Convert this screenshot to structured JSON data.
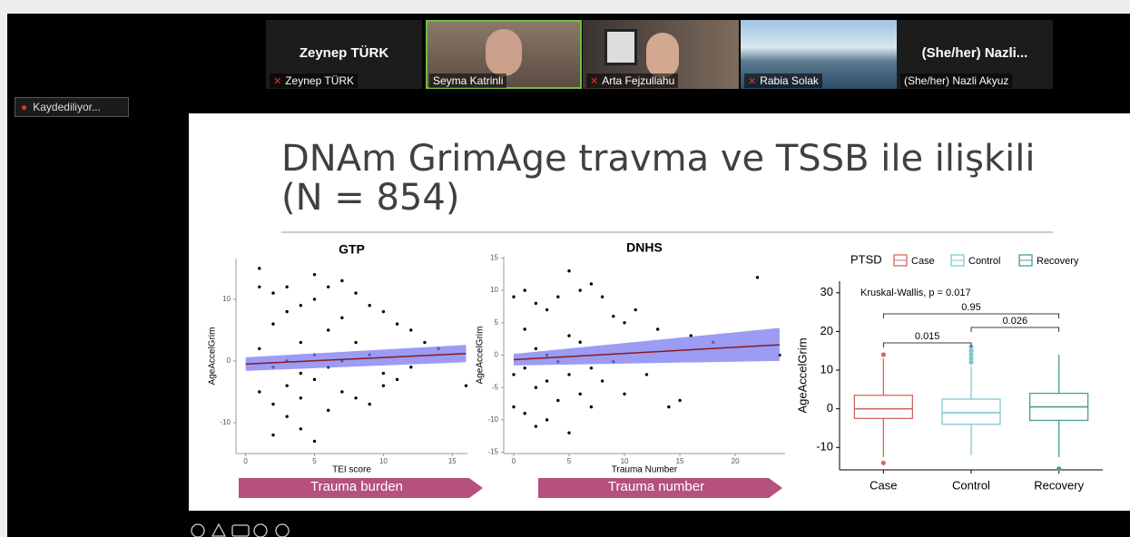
{
  "meeting": {
    "recording_status": "Kaydediliyor...",
    "participants": [
      {
        "tile_name": "Zeynep TÜRK",
        "label": "Zeynep TÜRK"
      },
      {
        "label": "Seyma Katrinli"
      },
      {
        "label": "Arta Fejzullahu"
      },
      {
        "label": "Rabia Solak"
      },
      {
        "tile_name": "(She/her)  Nazli...",
        "label": "(She/her) Nazli Akyuz"
      }
    ]
  },
  "slide": {
    "title_line1": "DNAm GrimAge travma ve TSSB ile ilişkili",
    "title_line2": "(N = 854)",
    "arrows": [
      "Trauma burden",
      "Trauma number"
    ]
  },
  "chart_data": [
    {
      "type": "scatter",
      "title": "GTP",
      "x_label": "TEI score",
      "y_label": "AgeAccelGrim",
      "x": [
        1,
        1,
        1,
        1,
        2,
        2,
        2,
        2,
        2,
        3,
        3,
        3,
        3,
        3,
        4,
        4,
        4,
        4,
        4,
        5,
        5,
        5,
        5,
        5,
        6,
        6,
        6,
        6,
        7,
        7,
        7,
        7,
        8,
        8,
        8,
        9,
        9,
        9,
        10,
        10,
        10,
        11,
        11,
        12,
        12,
        13,
        14,
        16
      ],
      "y": [
        15,
        12,
        2,
        -5,
        11,
        6,
        -1,
        -7,
        -12,
        12,
        8,
        0,
        -4,
        -9,
        9,
        3,
        -2,
        -6,
        -11,
        14,
        10,
        1,
        -3,
        -13,
        12,
        5,
        -1,
        -8,
        13,
        7,
        0,
        -5,
        11,
        3,
        -6,
        9,
        1,
        -7,
        8,
        -2,
        -4,
        6,
        -3,
        5,
        -1,
        3,
        2,
        -4
      ],
      "xlim": [
        -0.7,
        16.1
      ],
      "ylim": [
        -15,
        16.6
      ],
      "xticks": [
        0,
        5,
        10,
        15
      ],
      "yticks": [
        -10,
        0,
        10
      ],
      "fit": {
        "x": [
          0,
          16
        ],
        "y": [
          -0.5,
          1.2
        ],
        "lower": [
          -1.6,
          -0.2
        ],
        "upper": [
          0.6,
          2.6
        ]
      },
      "point_color": "#000000",
      "fit_color": "#8b1a1a",
      "band_color": "#7b7bf0"
    },
    {
      "type": "scatter",
      "title": "DNHS",
      "x_label": "Trauma Number",
      "y_label": "AgeAccelGrim",
      "x": [
        0,
        0,
        0,
        1,
        1,
        1,
        1,
        2,
        2,
        2,
        2,
        3,
        3,
        3,
        3,
        4,
        4,
        4,
        5,
        5,
        5,
        5,
        6,
        6,
        6,
        7,
        7,
        7,
        8,
        8,
        9,
        9,
        10,
        10,
        11,
        12,
        13,
        14,
        15,
        16,
        18,
        22,
        24
      ],
      "y": [
        9,
        -3,
        -8,
        10,
        4,
        -2,
        -9,
        8,
        1,
        -5,
        -11,
        7,
        0,
        -4,
        -10,
        9,
        -1,
        -7,
        13,
        3,
        -3,
        -12,
        10,
        2,
        -6,
        11,
        -2,
        -8,
        9,
        -4,
        6,
        -1,
        5,
        -6,
        7,
        -3,
        4,
        -8,
        -7,
        3,
        2,
        12,
        0
      ],
      "xlim": [
        -0.9,
        24.5
      ],
      "ylim": [
        -15.2,
        15.2
      ],
      "xticks": [
        0,
        5,
        10,
        15,
        20
      ],
      "yticks": [
        -15,
        -10,
        -5,
        0,
        5,
        10,
        15
      ],
      "fit": {
        "x": [
          0,
          24
        ],
        "y": [
          -0.7,
          1.6
        ],
        "lower": [
          -1.6,
          -0.9
        ],
        "upper": [
          0.2,
          4.2
        ]
      },
      "point_color": "#000000",
      "fit_color": "#8b1a1a",
      "band_color": "#7b7bf0"
    },
    {
      "type": "box",
      "legend_title": "PTSD",
      "y_label": "AgeAccelGrim",
      "categories": [
        "Case",
        "Control",
        "Recovery"
      ],
      "series": [
        {
          "name": "Case",
          "color": "#cc6b5f",
          "min": -12.5,
          "q1": -2.5,
          "median": 0,
          "q3": 3.5,
          "max": 13,
          "outliers": [
            14,
            -14
          ]
        },
        {
          "name": "Control",
          "color": "#7ec8d0",
          "min": -12,
          "q1": -4,
          "median": -1,
          "q3": 2.5,
          "max": 11,
          "outliers": [
            12,
            13,
            14,
            15,
            16
          ]
        },
        {
          "name": "Recovery",
          "color": "#4c9c96",
          "min": -12.5,
          "q1": -3,
          "median": 0.5,
          "q3": 4,
          "max": 14,
          "outliers": [
            -15.5
          ]
        }
      ],
      "ylim": [
        -15.8,
        33
      ],
      "yticks": [
        -10,
        0,
        10,
        20,
        30
      ],
      "annotation": "Kruskal-Wallis, p = 0.017",
      "comparisons": [
        0.015,
        0.026,
        0.95
      ]
    }
  ]
}
